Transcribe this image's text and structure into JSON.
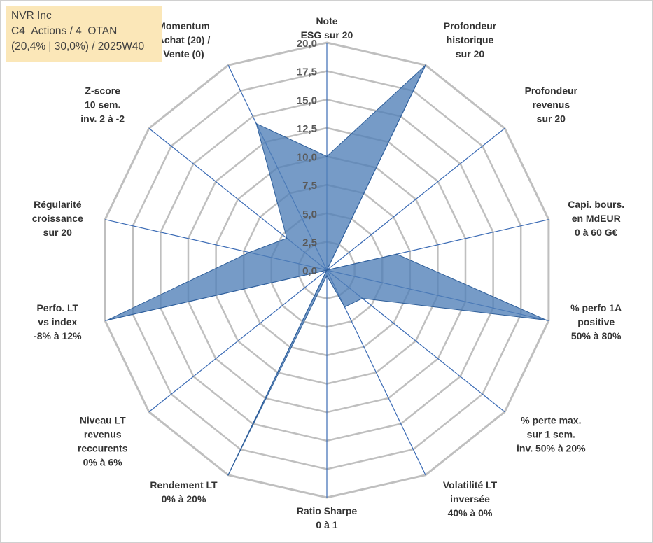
{
  "info": {
    "line1": "NVR Inc",
    "line2": "C4_Actions / 4_OTAN",
    "line3": "(20,4% | 30,0%) / 2025W40"
  },
  "chart_data": {
    "type": "radar",
    "rmax": 20,
    "ticks": [
      "0,0",
      "2,5",
      "5,0",
      "7,5",
      "10,0",
      "12,5",
      "15,0",
      "17,5",
      "20,0"
    ],
    "axes": [
      {
        "lines": [
          "Note",
          "ESG sur 20"
        ],
        "value": 10
      },
      {
        "lines": [
          "Profondeur",
          "historique",
          "sur 20"
        ],
        "value": 20
      },
      {
        "lines": [
          "Profondeur",
          "revenus",
          "sur 20"
        ],
        "value": 0
      },
      {
        "lines": [
          "Capi. bours.",
          "en MdEUR",
          "0 à 60 G€"
        ],
        "value": 6.3
      },
      {
        "lines": [
          "% perfo 1A",
          "positive",
          "50% à 80%"
        ],
        "value": 19.8
      },
      {
        "lines": [
          "% perte max.",
          "sur 1 sem.",
          "inv. 50% à 20%"
        ],
        "value": 4
      },
      {
        "lines": [
          "Volatilité LT",
          "inversée",
          "40% à 0%"
        ],
        "value": 3.6
      },
      {
        "lines": [
          "Ratio Sharpe",
          "0 à 1"
        ],
        "value": 0.5
      },
      {
        "lines": [
          "Rendement LT",
          "0% à 20%"
        ],
        "value": 20
      },
      {
        "lines": [
          "Niveau LT",
          "revenus",
          "reccurents",
          "0% à 6%"
        ],
        "value": 0
      },
      {
        "lines": [
          "Perfo. LT",
          "vs index",
          "-8% à 12%"
        ],
        "value": 19.8
      },
      {
        "lines": [
          "Régularité",
          "croissance",
          "sur 20"
        ],
        "value": 7
      },
      {
        "lines": [
          "Z-score",
          "10 sem.",
          "inv. 2 à -2"
        ],
        "value": 4.5
      },
      {
        "lines": [
          "Momentum",
          "Achat (20) /",
          "Vente (0)"
        ],
        "value": 14.3
      }
    ],
    "colors": {
      "fill": "#4f7fb7",
      "stroke": "#2f5f9a",
      "grid": "#bfbfbf",
      "spoke": "#3b6bb5"
    }
  }
}
